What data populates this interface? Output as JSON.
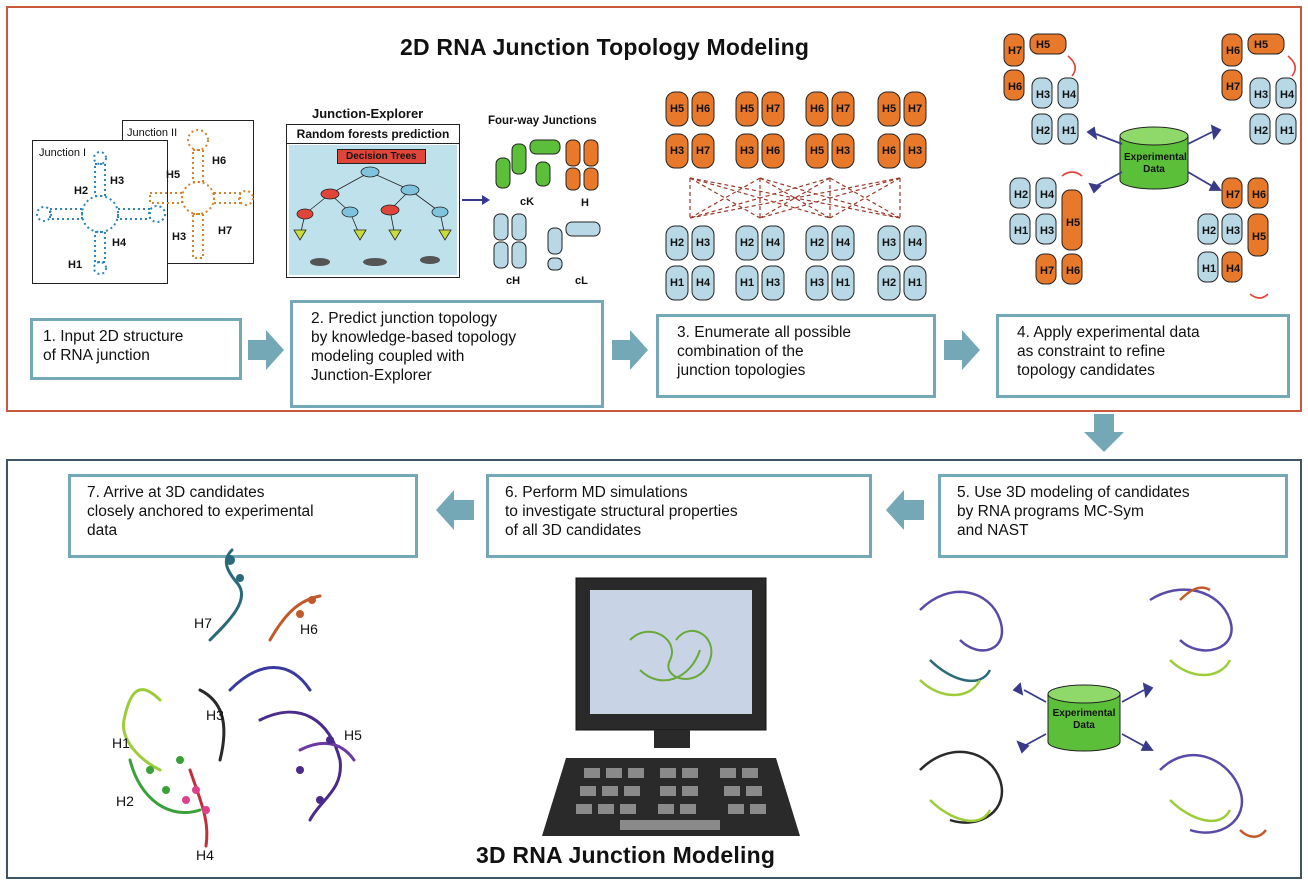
{
  "top_title": "2D RNA Junction Topology Modeling",
  "bottom_title": "3D RNA Junction Modeling",
  "steps": {
    "s1": [
      "1. Input 2D structure",
      "of RNA junction"
    ],
    "s2": [
      "2. Predict junction topology",
      "by knowledge-based topology",
      "modeling coupled with",
      "Junction-Explorer"
    ],
    "s3": [
      "3. Enumerate all possible",
      "combination of the",
      "junction topologies"
    ],
    "s4": [
      "4. Apply experimental data",
      "as constraint to refine",
      "topology candidates"
    ],
    "s5": [
      "5. Use 3D modeling of candidates",
      "by RNA programs MC-Sym",
      "and NAST"
    ],
    "s6": [
      "6. Perform MD simulations",
      "to investigate structural properties",
      "of all 3D candidates"
    ],
    "s7": [
      "7. Arrive at 3D candidates",
      "closely anchored to experimental",
      "data"
    ]
  },
  "junction_cards": {
    "j1": "Junction I",
    "j2": "Junction II"
  },
  "junction_explorer": {
    "title": "Junction-Explorer",
    "subtitle": "Random forests prediction",
    "decision": "Decision Trees"
  },
  "four_way": {
    "title": "Four-way Junctions",
    "types": [
      "cK",
      "H",
      "cH",
      "cL"
    ]
  },
  "experimental_data": {
    "line1": "Experimental",
    "line2": "Data"
  },
  "helices": [
    "H1",
    "H2",
    "H3",
    "H4",
    "H5",
    "H6",
    "H7"
  ],
  "colors": {
    "orange": "#e8792b",
    "blue": "#b8d8e6",
    "green": "#5cbf3a",
    "arrow": "#74a8b6",
    "top_border": "#c65a3a",
    "bottom_border": "#3e5566",
    "red": "#e0453a"
  }
}
